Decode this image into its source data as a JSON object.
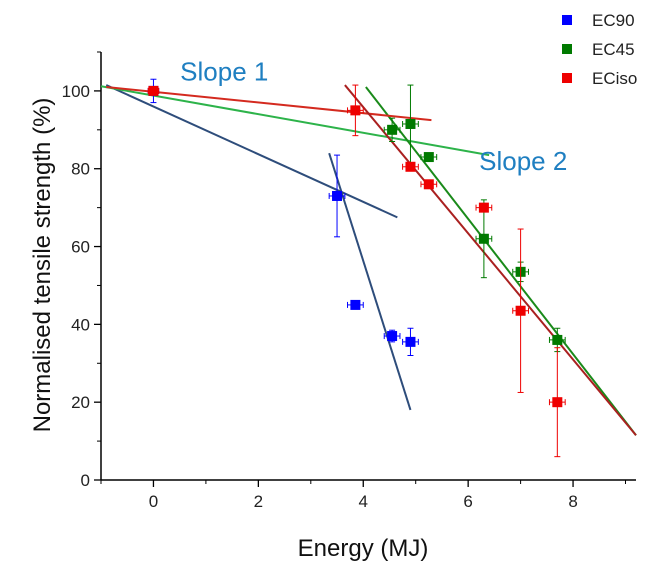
{
  "chart_data": {
    "type": "scatter",
    "title": "",
    "xlabel": "Energy (MJ)",
    "ylabel": "Normalised tensile strength  (%)",
    "xlim": [
      -1,
      9.2
    ],
    "ylim": [
      0,
      110
    ],
    "xticks": [
      0,
      2,
      4,
      6,
      8
    ],
    "yticks": [
      0,
      20,
      40,
      60,
      80,
      100
    ],
    "legend_position": "top-right",
    "series": [
      {
        "name": "EC90",
        "color": "#0000ff",
        "points": [
          {
            "x": 0,
            "y": 100,
            "xerr": 0.1,
            "yerr": 3
          },
          {
            "x": 3.5,
            "y": 73,
            "xerr": 0.15,
            "yerr": 10.5
          },
          {
            "x": 3.85,
            "y": 45,
            "xerr": 0.15,
            "yerr": 1
          },
          {
            "x": 4.55,
            "y": 37,
            "xerr": 0.15,
            "yerr": 1.5
          },
          {
            "x": 4.9,
            "y": 35.5,
            "xerr": 0.15,
            "yerr": 3.5
          }
        ]
      },
      {
        "name": "EC45",
        "color": "#007a00",
        "points": [
          {
            "x": 4.55,
            "y": 90,
            "xerr": 0.15,
            "yerr": 3
          },
          {
            "x": 4.9,
            "y": 91.5,
            "xerr": 0.15,
            "yerr": 10
          },
          {
            "x": 5.25,
            "y": 83,
            "xerr": 0.15,
            "yerr": 1
          },
          {
            "x": 6.3,
            "y": 62,
            "xerr": 0.15,
            "yerr": 10
          },
          {
            "x": 7.0,
            "y": 53.5,
            "xerr": 0.15,
            "yerr": 2.5
          },
          {
            "x": 7.7,
            "y": 36,
            "xerr": 0.15,
            "yerr": 3
          }
        ]
      },
      {
        "name": "ECiso",
        "color": "#ee0000",
        "points": [
          {
            "x": 0,
            "y": 100,
            "xerr": 0.1,
            "yerr": 1
          },
          {
            "x": 3.85,
            "y": 95,
            "xerr": 0.15,
            "yerr": 6.5
          },
          {
            "x": 4.9,
            "y": 80.5,
            "xerr": 0.15,
            "yerr": 1
          },
          {
            "x": 5.25,
            "y": 76,
            "xerr": 0.15,
            "yerr": 1
          },
          {
            "x": 6.3,
            "y": 70,
            "xerr": 0.15,
            "yerr": 1
          },
          {
            "x": 7.0,
            "y": 43.5,
            "xerr": 0.15,
            "yerr": 21
          },
          {
            "x": 7.7,
            "y": 20,
            "xerr": 0.15,
            "yerr": 14
          }
        ]
      }
    ],
    "fit_lines": [
      {
        "series": "EC90",
        "color": "#2e4d7b",
        "x": [
          -0.9,
          4.65
        ],
        "y": [
          101.5,
          67.5
        ]
      },
      {
        "series": "EC90",
        "color": "#2e4d7b",
        "x": [
          3.35,
          4.9
        ],
        "y": [
          84,
          18
        ]
      },
      {
        "series": "EC45",
        "color": "#2db34a",
        "x": [
          -1,
          6.4
        ],
        "y": [
          101.2,
          83.5
        ]
      },
      {
        "series": "EC45",
        "color": "#1a8a1a",
        "x": [
          4.05,
          9.2
        ],
        "y": [
          101,
          11.5
        ]
      },
      {
        "series": "ECiso",
        "color": "#d42a1f",
        "x": [
          -0.9,
          5.3
        ],
        "y": [
          101,
          92.5
        ]
      },
      {
        "series": "ECiso",
        "color": "#aa2020",
        "x": [
          3.65,
          9.2
        ],
        "y": [
          101.5,
          11.5
        ]
      }
    ],
    "annotations": [
      {
        "text": "Slope 1",
        "color": "#1f7fc1",
        "x": 1.35,
        "y": 105
      },
      {
        "text": "Slope 2",
        "color": "#1f7fc1",
        "x": 7.05,
        "y": 82
      }
    ]
  }
}
